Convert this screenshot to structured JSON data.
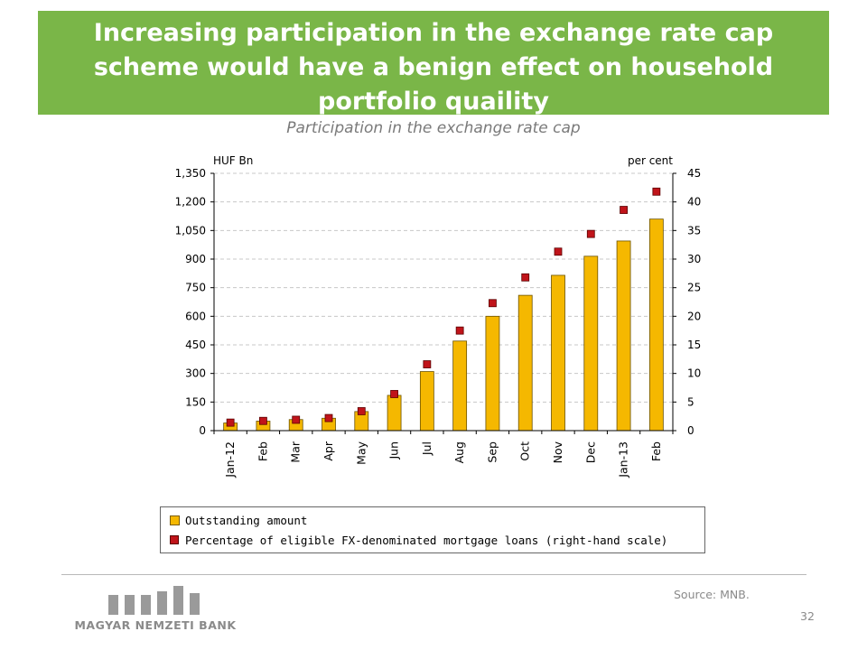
{
  "header": {
    "title": "Increasing participation in the exchange rate cap scheme would have a benign effect on household portfolio quaility"
  },
  "chart_data": {
    "type": "bar",
    "title": "Participation in the exchange rate cap",
    "categories": [
      "Jan-12",
      "Feb",
      "Mar",
      "Apr",
      "May",
      "Jun",
      "Jul",
      "Aug",
      "Sep",
      "Oct",
      "Nov",
      "Dec",
      "Jan-13",
      "Feb"
    ],
    "left_axis_label": "HUF Bn",
    "right_axis_label": "per cent",
    "ylim_left": [
      0,
      1350
    ],
    "yticks_left": [
      "0",
      "150",
      "300",
      "450",
      "600",
      "750",
      "900",
      "1,050",
      "1,200",
      "1,350"
    ],
    "ylim_right": [
      0,
      45
    ],
    "yticks_right": [
      "0",
      "5",
      "10",
      "15",
      "20",
      "25",
      "30",
      "35",
      "40",
      "45"
    ],
    "grid": "horizontal dashed",
    "legend_position": "bottom",
    "series": [
      {
        "name": "Outstanding amount",
        "type": "bar",
        "axis": "left",
        "color": "#f5b800",
        "values": [
          40,
          50,
          58,
          65,
          100,
          185,
          310,
          470,
          600,
          710,
          815,
          915,
          995,
          1110
        ]
      },
      {
        "name": "Percentage of eligible FX-denominated mortgage loans (right-hand scale)",
        "type": "scatter",
        "axis": "right",
        "color": "#c0141a",
        "values": [
          1.4,
          1.7,
          1.9,
          2.2,
          3.4,
          6.4,
          11.6,
          17.5,
          22.3,
          26.8,
          31.3,
          34.4,
          38.6,
          41.8
        ]
      }
    ]
  },
  "footer": {
    "source": "Source: MNB.",
    "page_number": "32",
    "bank_name": "MAGYAR NEMZETI BANK"
  }
}
